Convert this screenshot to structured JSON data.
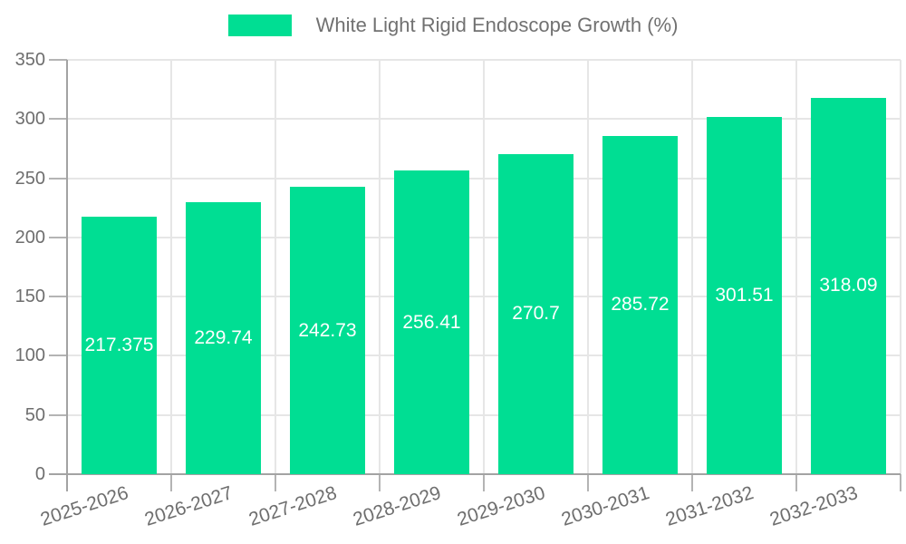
{
  "legend": {
    "label": "White Light Rigid Endoscope Growth (%)"
  },
  "chart_data": {
    "type": "bar",
    "title": "",
    "xlabel": "",
    "ylabel": "",
    "categories": [
      "2025-2026",
      "2026-2027",
      "2027-2028",
      "2028-2029",
      "2029-2030",
      "2030-2031",
      "2031-2032",
      "2032-2033"
    ],
    "series": [
      {
        "name": "White Light Rigid Endoscope Growth (%)",
        "values": [
          217.375,
          229.74,
          242.73,
          256.41,
          270.7,
          285.72,
          301.51,
          318.09
        ],
        "color": "#00de93"
      }
    ],
    "value_labels": [
      "217.375",
      "229.74",
      "242.73",
      "256.41",
      "270.7",
      "285.72",
      "301.51",
      "318.09"
    ],
    "ylim": [
      0,
      350
    ],
    "ytick_step": 50,
    "grid": true,
    "legend_position": "top"
  }
}
